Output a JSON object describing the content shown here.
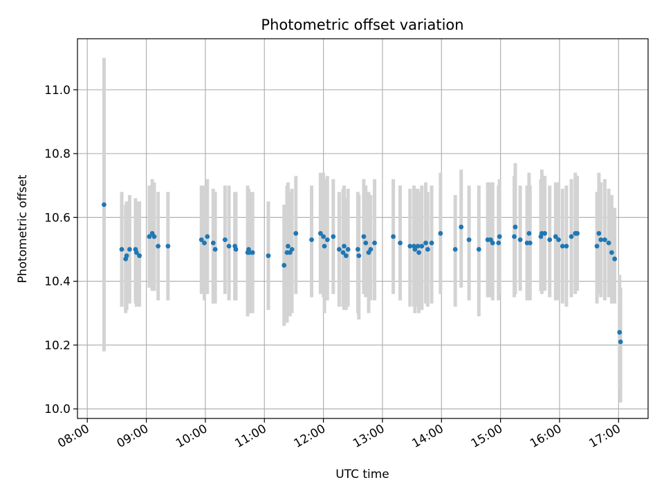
{
  "chart_data": {
    "type": "scatter",
    "title": "Photometric offset variation",
    "xlabel": "UTC time",
    "ylabel": "Photometric offset",
    "grid": true,
    "x_unit": "UTC time (HH:MM)",
    "xlim": [
      "07:50",
      "17:30"
    ],
    "ylim": [
      9.97,
      11.16
    ],
    "x_ticks": [
      "08:00",
      "09:00",
      "10:00",
      "11:00",
      "12:00",
      "13:00",
      "14:00",
      "15:00",
      "16:00",
      "17:00"
    ],
    "y_ticks": [
      "10.0",
      "10.2",
      "10.4",
      "10.6",
      "10.8",
      "11.0"
    ],
    "colors": {
      "point": "#1f77b4",
      "errorbar": "#d3d3d3",
      "grid": "#b0b0b0"
    },
    "series": [
      {
        "x": [
          "08:17",
          "08:35",
          "08:39",
          "08:40",
          "08:43",
          "08:49",
          "08:50",
          "08:53",
          "09:03",
          "09:06",
          "09:08",
          "09:12",
          "09:22",
          "09:56",
          "09:59",
          "10:02",
          "10:08",
          "10:10",
          "10:20",
          "10:24",
          "10:30",
          "10:31",
          "10:43",
          "10:44",
          "10:45",
          "10:48",
          "11:04",
          "11:20",
          "11:23",
          "11:24",
          "11:26",
          "11:28",
          "11:32",
          "11:48",
          "11:57",
          "12:00",
          "12:01",
          "12:04",
          "12:10",
          "12:16",
          "12:20",
          "12:21",
          "12:23",
          "12:25",
          "12:35",
          "12:36",
          "12:41",
          "12:43",
          "12:46",
          "12:48",
          "12:52",
          "13:11",
          "13:18",
          "13:28",
          "13:32",
          "13:33",
          "13:36",
          "13:37",
          "13:40",
          "13:44",
          "13:46",
          "13:50",
          "13:59",
          "14:14",
          "14:20",
          "14:28",
          "14:38",
          "14:47",
          "14:50",
          "14:52",
          "14:58",
          "14:59",
          "15:14",
          "15:15",
          "15:20",
          "15:27",
          "15:29",
          "15:30",
          "15:41",
          "15:42",
          "15:45",
          "15:50",
          "15:56",
          "15:59",
          "16:03",
          "16:07",
          "16:12",
          "16:16",
          "16:18",
          "16:38",
          "16:40",
          "16:42",
          "16:46",
          "16:50",
          "16:53",
          "16:56",
          "17:01",
          "17:02"
        ],
        "y": [
          10.64,
          10.5,
          10.47,
          10.48,
          10.5,
          10.5,
          10.49,
          10.48,
          10.54,
          10.55,
          10.54,
          10.51,
          10.51,
          10.53,
          10.52,
          10.54,
          10.52,
          10.5,
          10.53,
          10.51,
          10.51,
          10.5,
          10.49,
          10.5,
          10.49,
          10.49,
          10.48,
          10.45,
          10.49,
          10.51,
          10.49,
          10.5,
          10.55,
          10.53,
          10.55,
          10.54,
          10.51,
          10.53,
          10.54,
          10.5,
          10.49,
          10.51,
          10.48,
          10.5,
          10.5,
          10.48,
          10.54,
          10.52,
          10.49,
          10.5,
          10.52,
          10.54,
          10.52,
          10.51,
          10.51,
          10.5,
          10.51,
          10.49,
          10.51,
          10.52,
          10.5,
          10.52,
          10.55,
          10.5,
          10.57,
          10.53,
          10.5,
          10.53,
          10.53,
          10.52,
          10.52,
          10.54,
          10.54,
          10.57,
          10.53,
          10.52,
          10.55,
          10.52,
          10.54,
          10.55,
          10.55,
          10.53,
          10.54,
          10.53,
          10.51,
          10.51,
          10.54,
          10.55,
          10.55,
          10.51,
          10.55,
          10.53,
          10.53,
          10.52,
          10.49,
          10.47,
          10.24,
          10.21
        ],
        "err_low": [
          10.18,
          10.32,
          10.3,
          10.31,
          10.33,
          10.33,
          10.32,
          10.32,
          10.38,
          10.37,
          10.37,
          10.34,
          10.34,
          10.36,
          10.34,
          10.36,
          10.33,
          10.33,
          10.36,
          10.34,
          10.34,
          10.34,
          10.29,
          10.32,
          10.3,
          10.3,
          10.31,
          10.26,
          10.27,
          10.32,
          10.29,
          10.3,
          10.36,
          10.35,
          10.36,
          10.35,
          10.3,
          10.34,
          10.36,
          10.32,
          10.32,
          10.31,
          10.31,
          10.32,
          10.3,
          10.28,
          10.36,
          10.35,
          10.3,
          10.34,
          10.34,
          10.36,
          10.34,
          10.32,
          10.32,
          10.3,
          10.32,
          10.3,
          10.31,
          10.33,
          10.32,
          10.33,
          10.36,
          10.32,
          10.38,
          10.34,
          10.29,
          10.35,
          10.35,
          10.34,
          10.34,
          10.36,
          10.35,
          10.36,
          10.37,
          10.34,
          10.34,
          10.34,
          10.37,
          10.36,
          10.37,
          10.35,
          10.34,
          10.34,
          10.33,
          10.32,
          10.35,
          10.36,
          10.37,
          10.33,
          10.36,
          10.35,
          10.34,
          10.35,
          10.33,
          10.33,
          10.06,
          10.02
        ],
        "err_high": [
          11.1,
          10.68,
          10.64,
          10.65,
          10.67,
          10.66,
          10.65,
          10.65,
          10.7,
          10.72,
          10.71,
          10.68,
          10.68,
          10.7,
          10.7,
          10.72,
          10.69,
          10.68,
          10.7,
          10.7,
          10.68,
          10.68,
          10.7,
          10.69,
          10.68,
          10.68,
          10.65,
          10.64,
          10.7,
          10.71,
          10.68,
          10.69,
          10.73,
          10.7,
          10.74,
          10.74,
          10.72,
          10.73,
          10.72,
          10.68,
          10.69,
          10.7,
          10.66,
          10.69,
          10.68,
          10.67,
          10.72,
          10.7,
          10.68,
          10.67,
          10.72,
          10.72,
          10.7,
          10.69,
          10.7,
          10.69,
          10.69,
          10.68,
          10.7,
          10.71,
          10.68,
          10.7,
          10.74,
          10.67,
          10.75,
          10.7,
          10.7,
          10.71,
          10.71,
          10.71,
          10.7,
          10.72,
          10.73,
          10.77,
          10.7,
          10.7,
          10.74,
          10.7,
          10.72,
          10.75,
          10.73,
          10.7,
          10.71,
          10.71,
          10.69,
          10.7,
          10.72,
          10.74,
          10.73,
          10.68,
          10.74,
          10.71,
          10.72,
          10.69,
          10.67,
          10.63,
          10.42,
          10.38
        ]
      }
    ]
  }
}
